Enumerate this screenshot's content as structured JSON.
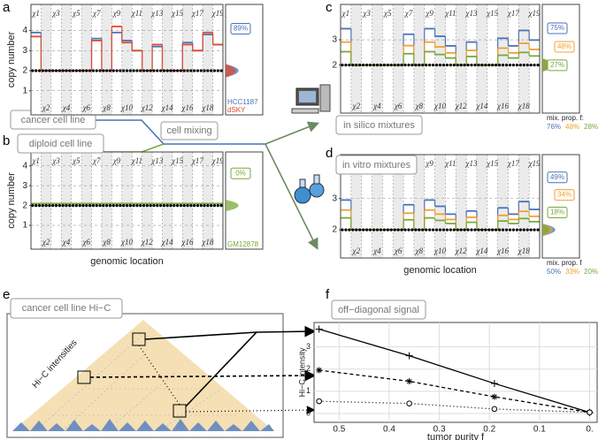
{
  "figure": {
    "letters": [
      "a",
      "b",
      "c",
      "d",
      "e",
      "f"
    ],
    "cancer_cell_line": "cancer cell line",
    "diploid_cell_line": "diploid cell line",
    "cell_mixing": "cell mixing",
    "in_silico": "in silico mixtures",
    "in_vitro": "in vitro mixtures",
    "hic_title": "cancer cell line Hi−C",
    "hic_intensities": "Hi−C intensities",
    "off_diagonal": "off−diagonal signal"
  },
  "chart_data": [
    {
      "type": "step",
      "ylabel": "copy number",
      "categories": [
        "χ1",
        "χ2",
        "χ3",
        "χ4",
        "χ5",
        "χ6",
        "χ7",
        "χ8",
        "χ9",
        "χ10",
        "χ11",
        "χ12",
        "χ13",
        "χ14",
        "χ15",
        "χ16",
        "χ17",
        "χ18",
        "χ19"
      ],
      "ylim": [
        -0.2,
        5.3
      ],
      "yticks": [
        1,
        2,
        3,
        4
      ],
      "grid": true,
      "reference": 2,
      "series": [
        {
          "name": "HCC1187",
          "color": "#4a72b8",
          "values": [
            3.9,
            2,
            2,
            2,
            2,
            2,
            3.6,
            2,
            3.9,
            3.5,
            3,
            2,
            3.2,
            2,
            2,
            3.4,
            3,
            3.8,
            3.3
          ]
        },
        {
          "name": "dSKY",
          "color": "#e04a2f",
          "values": [
            3.7,
            2,
            2,
            2,
            2,
            2,
            3.5,
            2,
            4.2,
            3.4,
            3,
            2,
            3.3,
            2,
            2,
            3.3,
            3,
            3.9,
            3.3
          ]
        }
      ],
      "side_labels": [
        {
          "value": 89,
          "label": "89%"
        }
      ]
    },
    {
      "type": "step",
      "ylabel": "copy number",
      "xlabel": "genomic location",
      "categories": [
        "χ1",
        "χ2",
        "χ3",
        "χ4",
        "χ5",
        "χ6",
        "χ7",
        "χ8",
        "χ9",
        "χ10",
        "χ11",
        "χ12",
        "χ13",
        "χ14",
        "χ15",
        "χ16",
        "χ17",
        "χ18",
        "χ19"
      ],
      "ylim": [
        -0.2,
        4.7
      ],
      "yticks": [
        1,
        2,
        3,
        4
      ],
      "grid": true,
      "reference": 2,
      "series": [
        {
          "name": "GM12878",
          "color": "#7aa83a",
          "values": [
            2.1,
            2.1,
            2.1,
            2.1,
            2.1,
            2.1,
            2.1,
            2.1,
            2.1,
            2.1,
            2.1,
            2.1,
            2.1,
            2.1,
            2.1,
            2.1,
            2.1,
            2.1,
            2.1
          ]
        }
      ],
      "side_labels": [
        {
          "value": 0,
          "label": "0%"
        }
      ]
    },
    {
      "type": "step",
      "mix_label": "mix. prop. f:",
      "categories": [
        "χ1",
        "χ2",
        "χ3",
        "χ4",
        "χ5",
        "χ6",
        "χ7",
        "χ8",
        "χ9",
        "χ10",
        "χ11",
        "χ12",
        "χ13",
        "χ14",
        "χ15",
        "χ16",
        "χ17",
        "χ18",
        "χ19"
      ],
      "ylim": [
        0.1,
        4.4
      ],
      "yticks": [
        2,
        3
      ],
      "grid": true,
      "reference": 2,
      "series": [
        {
          "name": "76%",
          "color": "#4a72b8",
          "values": [
            3.44,
            2,
            2,
            2,
            2,
            2,
            3.22,
            2,
            3.44,
            3.14,
            2.76,
            2,
            2.91,
            2,
            2,
            3.06,
            2.76,
            3.37,
            2.99
          ]
        },
        {
          "name": "48%",
          "color": "#f0a030",
          "values": [
            2.91,
            2,
            2,
            2,
            2,
            2,
            2.77,
            2,
            2.91,
            2.72,
            2.48,
            2,
            2.58,
            2,
            2,
            2.67,
            2.48,
            2.86,
            2.62
          ]
        },
        {
          "name": "28%",
          "color": "#7aa83a",
          "values": [
            2.53,
            2,
            2,
            2,
            2,
            2,
            2.45,
            2,
            2.53,
            2.42,
            2.28,
            2,
            2.34,
            2,
            2,
            2.39,
            2.28,
            2.5,
            2.36
          ]
        }
      ],
      "side_labels": [
        {
          "value": 75,
          "label": "75%"
        },
        {
          "value": 48,
          "label": "48%"
        },
        {
          "value": 27,
          "label": "27%"
        }
      ]
    },
    {
      "type": "step",
      "xlabel": "genomic location",
      "mix_label": "mix. prop. f",
      "categories": [
        "χ1",
        "χ2",
        "χ3",
        "χ4",
        "χ5",
        "χ6",
        "χ7",
        "χ8",
        "χ9",
        "χ10",
        "χ11",
        "χ12",
        "χ13",
        "χ14",
        "χ15",
        "χ16",
        "χ17",
        "χ18",
        "χ19"
      ],
      "ylim": [
        1.1,
        4.4
      ],
      "yticks": [
        2,
        3
      ],
      "grid": true,
      "reference": 2,
      "series": [
        {
          "name": "50%",
          "color": "#4a72b8",
          "values": [
            2.95,
            2,
            2,
            2,
            2,
            2,
            2.8,
            2,
            2.95,
            2.75,
            2.5,
            2,
            2.6,
            2,
            2,
            2.7,
            2.5,
            2.9,
            2.65
          ]
        },
        {
          "name": "33%",
          "color": "#f0a030",
          "values": [
            2.63,
            2,
            2,
            2,
            2,
            2,
            2.53,
            2,
            2.63,
            2.5,
            2.33,
            2,
            2.4,
            2,
            2,
            2.46,
            2.33,
            2.59,
            2.43
          ]
        },
        {
          "name": "20%",
          "color": "#7aa83a",
          "values": [
            2.38,
            2,
            2,
            2,
            2,
            2,
            2.32,
            2,
            2.38,
            2.3,
            2.2,
            2,
            2.24,
            2,
            2,
            2.28,
            2.2,
            2.36,
            2.26
          ]
        }
      ],
      "side_labels": [
        {
          "value": 49,
          "label": "49%"
        },
        {
          "value": 34,
          "label": "34%"
        },
        {
          "value": 18,
          "label": "18%"
        }
      ]
    },
    {
      "type": "line",
      "xlabel": "tumor purity f",
      "ylabel": "Hi−C intensity",
      "xlim": [
        0.55,
        -0.015
      ],
      "xticks": [
        0.5,
        0.4,
        0.3,
        0.2,
        0.1,
        {
          "value": 0,
          "label": "0."
        }
      ],
      "ylim": [
        -0.4,
        4.1
      ],
      "yticks": [
        0,
        1,
        2,
        3
      ],
      "grid": true,
      "x": [
        0.54,
        0.36,
        0.19,
        0
      ],
      "series": [
        {
          "marker": "plus",
          "dash": "solid",
          "color": "#000000",
          "values": [
            3.8,
            2.6,
            1.35,
            0.05
          ]
        },
        {
          "marker": "star",
          "dash": "dashed",
          "color": "#000000",
          "values": [
            1.95,
            1.45,
            0.75,
            0.05
          ]
        },
        {
          "marker": "circle",
          "dash": "dotted",
          "color": "#000000",
          "values": [
            0.55,
            0.45,
            0.2,
            0.05
          ]
        }
      ]
    }
  ]
}
